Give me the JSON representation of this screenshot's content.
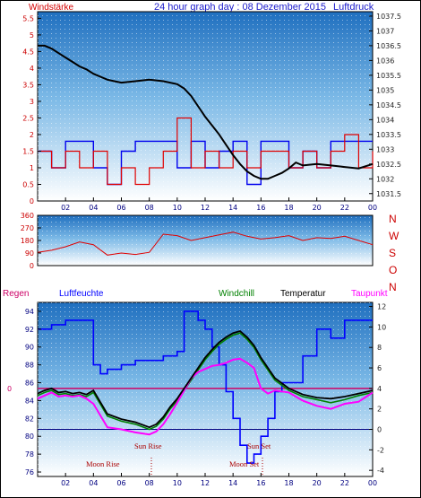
{
  "header": {
    "left_title": "Windstärke",
    "center_title": "24 hour graph day : 08 Dezember 2015",
    "right_title": "Luftdruck"
  },
  "colors": {
    "plot_top": "#1f6fbf",
    "plot_mid": "#7ab8e6",
    "plot_bottom": "#ffffff",
    "wind": "#e00000",
    "gust": "#0000ee",
    "pressure": "#000000",
    "humidity": "#0000ff",
    "temperature": "#000000",
    "windchill": "#008000",
    "dewpoint": "#ff00ff",
    "rain_line": "#cc0066",
    "zero_line": "#000080"
  },
  "hours": [
    "02",
    "04",
    "06",
    "08",
    "10",
    "12",
    "14",
    "16",
    "18",
    "20",
    "22",
    "00"
  ],
  "chart_data": [
    {
      "type": "line",
      "name": "wind-pressure",
      "ylabel_left": "Windstärke",
      "ylabel_right": "Luftdruck",
      "left_ticks": [
        "0",
        "0.5",
        "1",
        "1.5",
        "2",
        "2.5",
        "3",
        "3.5",
        "4",
        "4.5",
        "5",
        "5.5"
      ],
      "right_ticks": [
        "1031.5",
        "1032",
        "1032.5",
        "1033",
        "1033.5",
        "1034",
        "1034.5",
        "1035",
        "1035.5",
        "1036",
        "1036.5",
        "1037",
        "1037.5"
      ],
      "ylim_left": [
        0,
        5.7
      ],
      "ylim_right": [
        1031.25,
        1037.65
      ],
      "xlim": [
        0,
        24
      ],
      "series": [
        {
          "name": "Luftdruck",
          "x": [
            0,
            0.5,
            1,
            1.5,
            2,
            2.5,
            3,
            3.5,
            4,
            4.5,
            5,
            5.5,
            6,
            7,
            8,
            9,
            10,
            10.5,
            11,
            11.5,
            12,
            12.5,
            13,
            13.5,
            14,
            14.5,
            15,
            15.5,
            16,
            16.5,
            17,
            17.5,
            18,
            18.5,
            19,
            20,
            21,
            22,
            23,
            24
          ],
          "values": [
            1036.5,
            1036.5,
            1036.4,
            1036.25,
            1036.1,
            1035.95,
            1035.8,
            1035.7,
            1035.55,
            1035.45,
            1035.35,
            1035.3,
            1035.25,
            1035.3,
            1035.35,
            1035.3,
            1035.2,
            1035.05,
            1034.8,
            1034.45,
            1034.1,
            1033.8,
            1033.5,
            1033.15,
            1032.8,
            1032.5,
            1032.25,
            1032.1,
            1032.0,
            1032.0,
            1032.1,
            1032.2,
            1032.35,
            1032.55,
            1032.45,
            1032.5,
            1032.45,
            1032.4,
            1032.35,
            1032.5
          ]
        },
        {
          "name": "Windstärke",
          "x": [
            0,
            1,
            2,
            3,
            4,
            5,
            6,
            7,
            8,
            9,
            10,
            11,
            12,
            13,
            14,
            15,
            16,
            17,
            18,
            19,
            20,
            21,
            22,
            23,
            24
          ],
          "values": [
            1.5,
            1,
            1.5,
            1,
            1.5,
            0.5,
            1,
            0.5,
            1,
            1.5,
            2.5,
            1,
            1.5,
            1,
            1.5,
            1,
            1.5,
            1.5,
            1,
            1.5,
            1,
            1.5,
            2,
            1,
            1.5
          ]
        },
        {
          "name": "Wind gust",
          "x": [
            0,
            1,
            2,
            3,
            4,
            5,
            6,
            7,
            8,
            9,
            10,
            11,
            12,
            13,
            14,
            15,
            16,
            17,
            18,
            19,
            20,
            21,
            22,
            23,
            24
          ],
          "values": [
            1.5,
            1,
            1.8,
            1.8,
            1,
            0.5,
            1.5,
            1.8,
            1.8,
            1.8,
            1,
            1.8,
            1,
            1.5,
            1.8,
            0.5,
            1.8,
            1.8,
            1,
            1.5,
            1,
            1.8,
            1.8,
            1.8,
            1.8
          ]
        }
      ]
    },
    {
      "type": "line",
      "name": "wind-direction",
      "left_ticks": [
        "0",
        "90",
        "180",
        "270",
        "360"
      ],
      "right_labels": [
        "N",
        "W",
        "S",
        "O",
        "N"
      ],
      "ylim": [
        0,
        360
      ],
      "xlim": [
        0,
        24
      ],
      "series": [
        {
          "name": "direction",
          "x": [
            0,
            1,
            2,
            3,
            4,
            5,
            6,
            7,
            8,
            9,
            10,
            11,
            12,
            13,
            14,
            15,
            16,
            17,
            18,
            19,
            20,
            21,
            22,
            23,
            24
          ],
          "values": [
            95,
            110,
            135,
            170,
            150,
            75,
            90,
            80,
            95,
            225,
            215,
            180,
            200,
            220,
            240,
            210,
            190,
            200,
            215,
            180,
            200,
            195,
            210,
            180,
            150
          ]
        }
      ]
    },
    {
      "type": "line",
      "name": "temperature-humidity",
      "labels": {
        "rain": "Regen",
        "humidity": "Luftfeuchte",
        "windchill": "Windchill",
        "temperature": "Temperatur",
        "dewpoint": "Taupunkt"
      },
      "left_ticks": [
        "76",
        "78",
        "80",
        "82",
        "84",
        "86",
        "88",
        "90",
        "92",
        "94"
      ],
      "right_ticks": [
        "-4",
        "-2",
        "0",
        "2",
        "4",
        "6",
        "8",
        "10",
        "12"
      ],
      "rain_tick": "0",
      "ylim_left": [
        75.5,
        95
      ],
      "ylim_right": [
        -4.6,
        12.4
      ],
      "xlim": [
        0,
        24
      ],
      "series": [
        {
          "name": "Luftfeuchte",
          "x": [
            0,
            1,
            2,
            3,
            4,
            4.5,
            5,
            6,
            7,
            8,
            9,
            10,
            10.5,
            11,
            11.5,
            12,
            12.5,
            13,
            13.5,
            14,
            14.5,
            15,
            15.5,
            16,
            16.5,
            17,
            17.5,
            18,
            19,
            20,
            21,
            22,
            23,
            24
          ],
          "values": [
            92,
            92.5,
            93,
            93,
            88,
            87,
            87.5,
            88,
            88.5,
            88.5,
            89,
            89.5,
            94,
            94,
            93,
            92,
            90,
            88,
            85,
            82,
            79,
            77,
            78,
            80,
            82,
            85,
            86,
            86,
            89,
            92,
            91,
            93,
            93,
            93
          ]
        },
        {
          "name": "Temperatur",
          "x": [
            0,
            0.5,
            1,
            1.5,
            2,
            2.5,
            3,
            3.5,
            4,
            5,
            6,
            7,
            8,
            8.5,
            9,
            9.5,
            10,
            10.5,
            11,
            11.5,
            12,
            12.5,
            13,
            13.5,
            14,
            14.5,
            15,
            15.5,
            16,
            16.5,
            17,
            18,
            19,
            20,
            21,
            22,
            23,
            24
          ],
          "values": [
            3.5,
            3.8,
            4,
            3.6,
            3.7,
            3.5,
            3.6,
            3.4,
            3.8,
            1.5,
            1,
            0.7,
            0.2,
            0.5,
            1.2,
            2.2,
            3,
            4,
            5,
            6,
            7,
            7.8,
            8.5,
            9,
            9.4,
            9.6,
            9,
            8.2,
            7,
            6,
            5,
            4,
            3.4,
            3.1,
            3,
            3.2,
            3.5,
            3.8
          ]
        },
        {
          "name": "Windchill",
          "x": [
            0,
            0.5,
            1,
            1.5,
            2,
            2.5,
            3,
            3.5,
            4,
            5,
            6,
            7,
            8,
            8.5,
            9,
            9.5,
            10,
            10.5,
            11,
            11.5,
            12,
            12.5,
            13,
            13.5,
            14,
            14.5,
            15,
            15.5,
            16,
            16.5,
            17,
            18,
            19,
            20,
            21,
            22,
            23,
            24
          ],
          "values": [
            3.3,
            3.6,
            3.8,
            3.4,
            3.5,
            3.3,
            3.4,
            3.2,
            3.6,
            1.3,
            0.8,
            0.5,
            0,
            0.3,
            1,
            2,
            2.8,
            3.8,
            4.8,
            5.8,
            6.8,
            7.6,
            8.3,
            8.8,
            9.2,
            9.4,
            8.8,
            8,
            6.8,
            5.8,
            4.8,
            3.8,
            3.2,
            2.9,
            2.6,
            2.9,
            3.3,
            3.6
          ]
        },
        {
          "name": "Taupunkt",
          "x": [
            0,
            0.5,
            1,
            1.5,
            2,
            2.5,
            3,
            3.5,
            4,
            5,
            6,
            7,
            8,
            8.5,
            9,
            9.5,
            10,
            10.5,
            11,
            11.5,
            12,
            12.5,
            13,
            13.5,
            14,
            14.5,
            15,
            15.5,
            16,
            16.5,
            17,
            18,
            19,
            20,
            21,
            22,
            23,
            24
          ],
          "values": [
            3,
            3.3,
            3.6,
            3.2,
            3.3,
            3.2,
            3.3,
            3,
            2.5,
            0.2,
            0,
            -0.3,
            -0.5,
            -0.2,
            0.5,
            1.5,
            2.6,
            3.8,
            5,
            5.6,
            5.9,
            6.2,
            6.3,
            6.5,
            6.8,
            6.9,
            6.5,
            6,
            4,
            3.5,
            3.8,
            3.6,
            2.8,
            2.3,
            2,
            2.5,
            2.7,
            3.6
          ]
        }
      ],
      "annotations": {
        "sun_rise": "Sun Rise",
        "sun_set": "Sun Set",
        "moon_rise": "Moon Rise",
        "moon_set": "Moon Set"
      }
    }
  ]
}
